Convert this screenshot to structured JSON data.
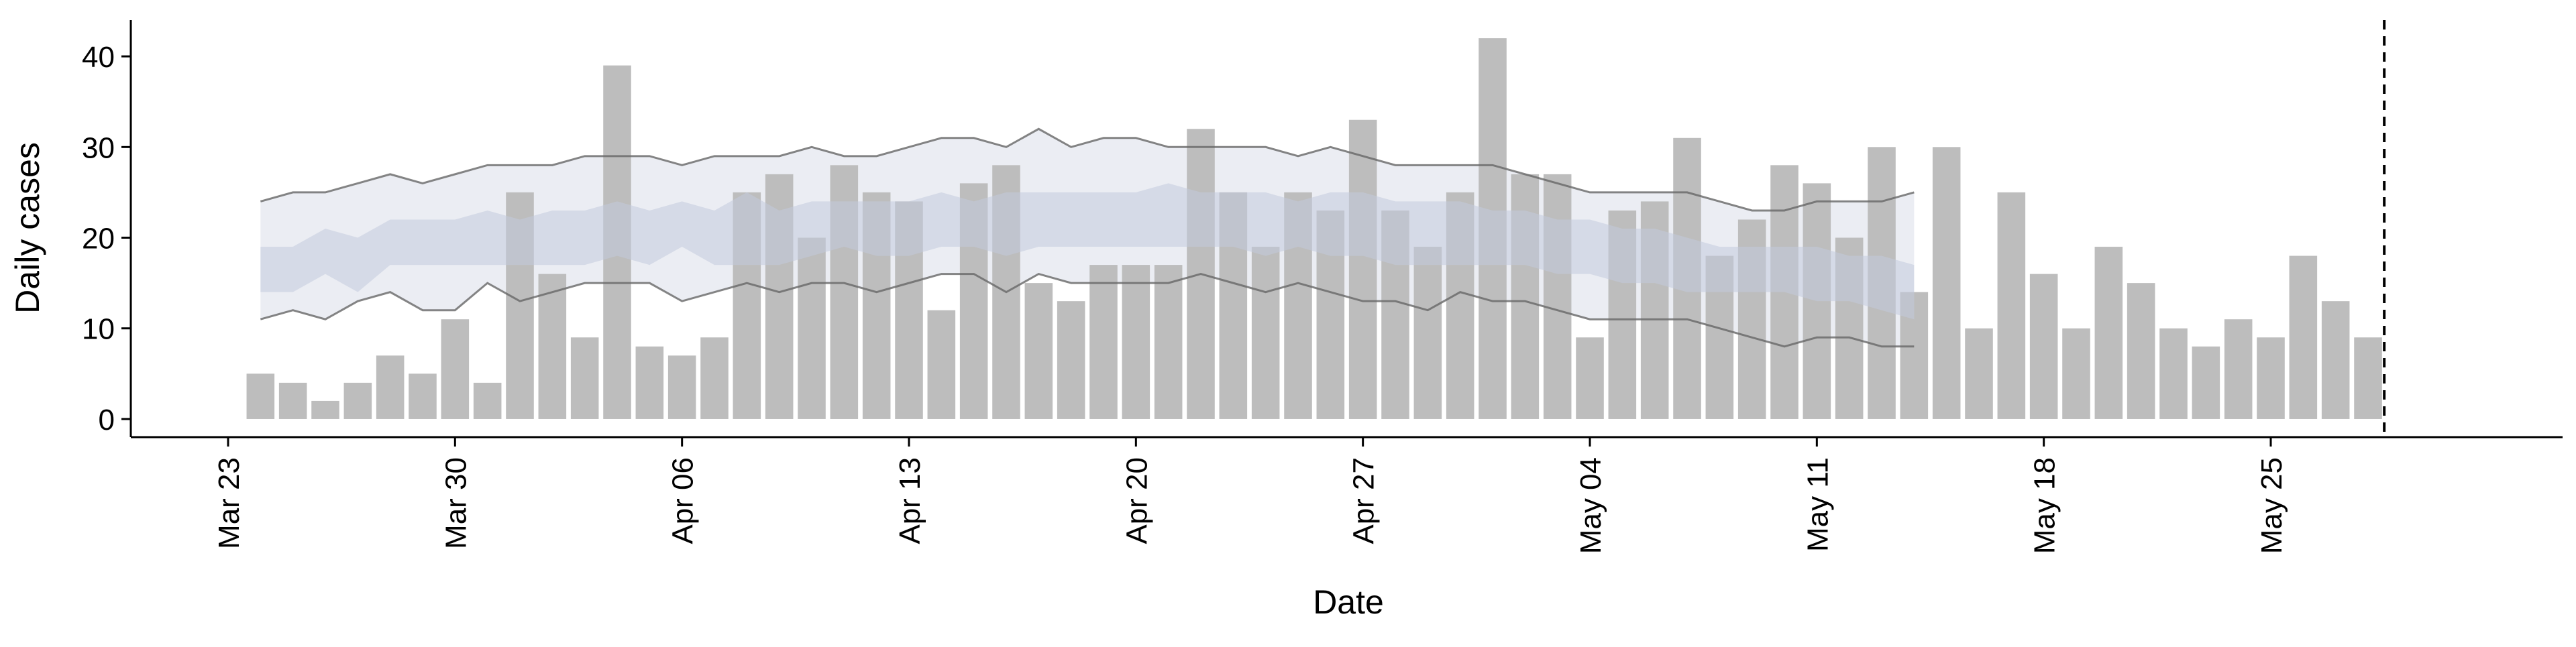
{
  "chart_data": {
    "type": "bar",
    "title": "",
    "xlabel": "Date",
    "ylabel": "Daily cases",
    "ylim": [
      -2,
      44
    ],
    "xlim": [
      "2020-03-20",
      "2020-06-03"
    ],
    "yticks": [
      0,
      10,
      20,
      30,
      40
    ],
    "xticks": [
      {
        "date": "2020-03-23",
        "label": "Mar 23"
      },
      {
        "date": "2020-03-30",
        "label": "Mar 30"
      },
      {
        "date": "2020-04-06",
        "label": "Apr 06"
      },
      {
        "date": "2020-04-13",
        "label": "Apr 13"
      },
      {
        "date": "2020-04-20",
        "label": "Apr 20"
      },
      {
        "date": "2020-04-27",
        "label": "Apr 27"
      },
      {
        "date": "2020-05-04",
        "label": "May 04"
      },
      {
        "date": "2020-05-11",
        "label": "May 11"
      },
      {
        "date": "2020-05-18",
        "label": "May 18"
      },
      {
        "date": "2020-05-25",
        "label": "May 25"
      }
    ],
    "grid": false,
    "legend": "none",
    "colors": {
      "bars": "#bdbdbd",
      "outer_band": "#e8eaf1",
      "inner_band": "#c3cadd",
      "bound_line": "#666666",
      "vline": "#000000"
    },
    "bars": {
      "start_date": "2020-03-24",
      "values": [
        5,
        4,
        2,
        4,
        7,
        5,
        11,
        4,
        25,
        16,
        9,
        39,
        8,
        7,
        9,
        25,
        27,
        20,
        28,
        25,
        24,
        12,
        26,
        28,
        15,
        13,
        17,
        17,
        17,
        32,
        25,
        19,
        25,
        23,
        33,
        23,
        19,
        25,
        42,
        27,
        27,
        9,
        23,
        24,
        31,
        18,
        22,
        28,
        26,
        20,
        30,
        14,
        30,
        10,
        25,
        16,
        10,
        19,
        15,
        10,
        8,
        11,
        9,
        18,
        13,
        9
      ]
    },
    "prediction": {
      "start_date": "2020-03-24",
      "outer_upper": [
        24,
        25,
        25,
        26,
        27,
        26,
        27,
        28,
        28,
        28,
        29,
        29,
        29,
        28,
        29,
        29,
        29,
        30,
        29,
        29,
        30,
        31,
        31,
        30,
        32,
        30,
        31,
        31,
        30,
        30,
        30,
        30,
        29,
        30,
        29,
        28,
        28,
        28,
        28,
        27,
        26,
        25,
        25,
        25,
        25,
        24,
        23,
        23,
        24,
        24,
        24,
        25
      ],
      "outer_lower": [
        11,
        12,
        11,
        13,
        14,
        12,
        12,
        15,
        13,
        14,
        15,
        15,
        15,
        13,
        14,
        15,
        14,
        15,
        15,
        14,
        15,
        16,
        16,
        14,
        16,
        15,
        15,
        15,
        15,
        16,
        15,
        14,
        15,
        14,
        13,
        13,
        12,
        14,
        13,
        13,
        12,
        11,
        11,
        11,
        11,
        10,
        9,
        8,
        9,
        9,
        8,
        8
      ],
      "inner_upper": [
        19,
        19,
        21,
        20,
        22,
        22,
        22,
        23,
        22,
        23,
        23,
        24,
        23,
        24,
        23,
        25,
        23,
        24,
        24,
        24,
        24,
        25,
        24,
        25,
        25,
        25,
        25,
        25,
        26,
        25,
        25,
        25,
        24,
        25,
        25,
        24,
        24,
        24,
        23,
        23,
        22,
        22,
        21,
        21,
        20,
        19,
        19,
        19,
        19,
        18,
        18,
        17
      ],
      "inner_lower": [
        14,
        14,
        16,
        14,
        17,
        17,
        17,
        17,
        17,
        17,
        17,
        18,
        17,
        19,
        17,
        17,
        17,
        18,
        19,
        18,
        18,
        19,
        19,
        18,
        19,
        19,
        19,
        19,
        19,
        19,
        19,
        18,
        19,
        18,
        18,
        17,
        17,
        17,
        17,
        17,
        16,
        16,
        15,
        15,
        14,
        14,
        14,
        14,
        13,
        13,
        12,
        11
      ]
    },
    "vline_date": "2020-05-29"
  }
}
